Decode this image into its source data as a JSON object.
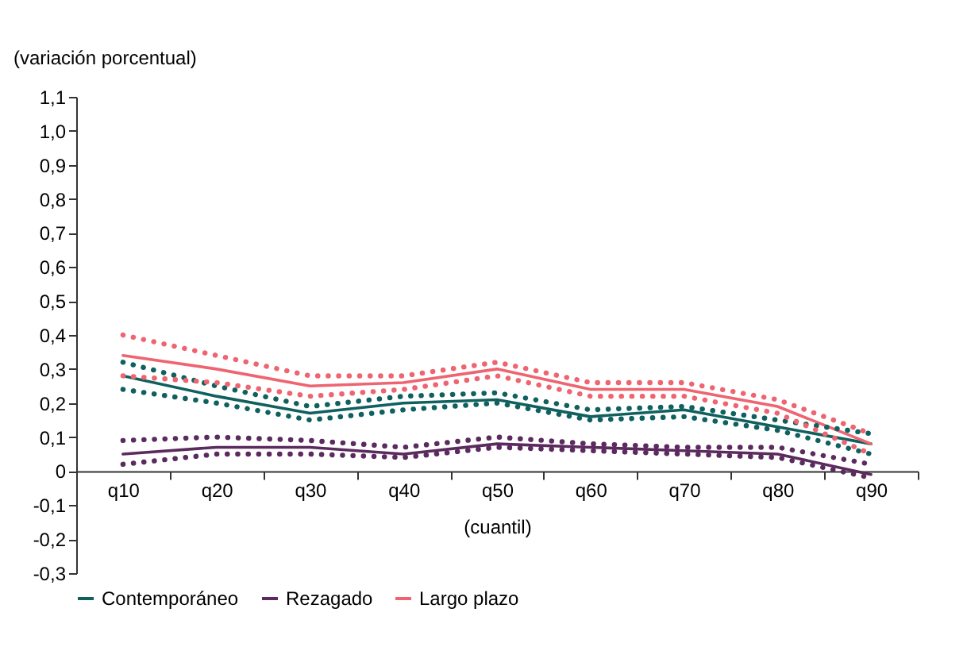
{
  "chart_data": {
    "type": "line",
    "ylabel": "(variación porcentual)",
    "xlabel": "(cuantil)",
    "categories": [
      "q10",
      "q20",
      "q30",
      "q40",
      "q50",
      "q60",
      "q70",
      "q80",
      "q90"
    ],
    "series": [
      {
        "name": "Contemporáneo",
        "color": "#10605f",
        "line_style": "solid",
        "values": [
          0.28,
          0.22,
          0.17,
          0.2,
          0.21,
          0.16,
          0.18,
          0.13,
          0.08
        ]
      },
      {
        "name": "Rezagado",
        "color": "#5b2a5e",
        "line_style": "solid",
        "values": [
          0.05,
          0.07,
          0.07,
          0.05,
          0.08,
          0.07,
          0.06,
          0.05,
          -0.01
        ]
      },
      {
        "name": "Largo plazo",
        "color": "#ee6470",
        "line_style": "solid",
        "values": [
          0.34,
          0.3,
          0.25,
          0.26,
          0.3,
          0.24,
          0.24,
          0.19,
          0.08
        ]
      },
      {
        "color": "#10605f",
        "line_style": "dotted",
        "values": [
          0.32,
          0.25,
          0.19,
          0.22,
          0.23,
          0.18,
          0.19,
          0.15,
          0.11
        ]
      },
      {
        "color": "#10605f",
        "line_style": "dotted",
        "values": [
          0.24,
          0.2,
          0.15,
          0.18,
          0.2,
          0.15,
          0.16,
          0.12,
          0.05
        ]
      },
      {
        "color": "#5b2a5e",
        "line_style": "dotted",
        "values": [
          0.09,
          0.1,
          0.09,
          0.07,
          0.1,
          0.08,
          0.07,
          0.07,
          0.02
        ]
      },
      {
        "color": "#5b2a5e",
        "line_style": "dotted",
        "values": [
          0.02,
          0.05,
          0.05,
          0.04,
          0.07,
          0.06,
          0.05,
          0.04,
          -0.02
        ]
      },
      {
        "color": "#ee6470",
        "line_style": "dotted",
        "values": [
          0.4,
          0.34,
          0.28,
          0.28,
          0.32,
          0.26,
          0.26,
          0.21,
          0.11
        ]
      },
      {
        "color": "#ee6470",
        "line_style": "dotted",
        "values": [
          0.28,
          0.26,
          0.22,
          0.24,
          0.28,
          0.22,
          0.22,
          0.17,
          0.05
        ]
      }
    ],
    "ylim": [
      -0.3,
      1.1
    ],
    "yticks": [
      {
        "value": -0.3,
        "label": "-0,3"
      },
      {
        "value": -0.2,
        "label": "-0,2"
      },
      {
        "value": -0.1,
        "label": "-0,1"
      },
      {
        "value": 0,
        "label": "0"
      },
      {
        "value": 0.1,
        "label": "0,1"
      },
      {
        "value": 0.2,
        "label": "0,2"
      },
      {
        "value": 0.3,
        "label": "0,3"
      },
      {
        "value": 0.4,
        "label": "0,4"
      },
      {
        "value": 0.5,
        "label": "0,5"
      },
      {
        "value": 0.6,
        "label": "0,6"
      },
      {
        "value": 0.7,
        "label": "0,7"
      },
      {
        "value": 0.8,
        "label": "0,8"
      },
      {
        "value": 0.9,
        "label": "0,9"
      },
      {
        "value": 1.0,
        "label": "1,0"
      },
      {
        "value": 1.1,
        "label": "1,1"
      }
    ],
    "grid": false,
    "legend": "bottom",
    "marker": "none"
  }
}
